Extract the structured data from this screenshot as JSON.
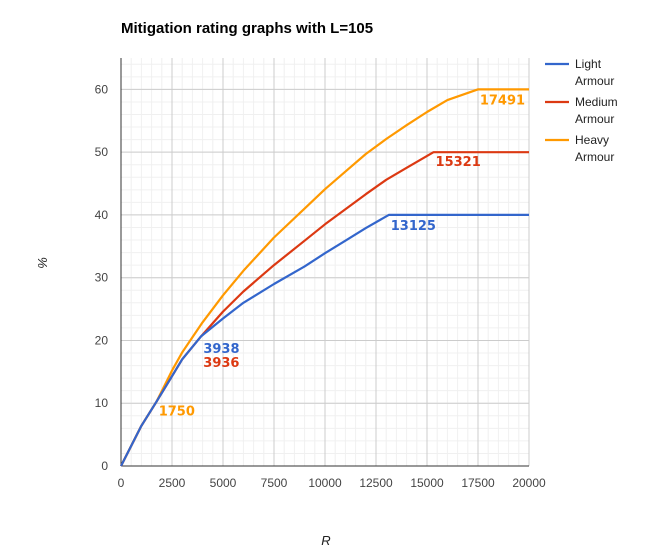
{
  "chart_data": {
    "type": "line",
    "title": "Mitigation rating graphs with L=105",
    "xlabel": "R",
    "ylabel": "%",
    "xlim": [
      0,
      20000
    ],
    "ylim": [
      0,
      65
    ],
    "x_ticks": [
      0,
      2500,
      5000,
      7500,
      10000,
      12500,
      15000,
      17500,
      20000
    ],
    "y_ticks": [
      0,
      10,
      20,
      30,
      40,
      50,
      60
    ],
    "x_tick_labels": [
      "0",
      "2500",
      "5000",
      "7500",
      "10000",
      "12500",
      "15000",
      "17500",
      "20000"
    ],
    "y_tick_labels": [
      "0",
      "10",
      "20",
      "30",
      "40",
      "50",
      "60"
    ],
    "grid": true,
    "legend_position": "right",
    "series": [
      {
        "name": "Light Armour",
        "legend_lines": [
          "Light",
          "Armour"
        ],
        "color": "#3366cc",
        "points": [
          [
            0,
            0
          ],
          [
            1000,
            6.4
          ],
          [
            1750,
            10.3
          ],
          [
            2500,
            14.3
          ],
          [
            3000,
            17.0
          ],
          [
            3938,
            20.7
          ],
          [
            5000,
            23.5
          ],
          [
            6000,
            26.0
          ],
          [
            7500,
            29.0
          ],
          [
            9000,
            31.8
          ],
          [
            10000,
            33.9
          ],
          [
            11000,
            35.9
          ],
          [
            12000,
            37.9
          ],
          [
            13125,
            40.0
          ],
          [
            20000,
            40.0
          ]
        ]
      },
      {
        "name": "Medium Armour",
        "legend_lines": [
          "Medium",
          "Armour"
        ],
        "color": "#dc3912",
        "points": [
          [
            0,
            0
          ],
          [
            1000,
            6.4
          ],
          [
            1750,
            10.3
          ],
          [
            2500,
            14.3
          ],
          [
            3000,
            17.0
          ],
          [
            3936,
            20.7
          ],
          [
            5000,
            24.6
          ],
          [
            6000,
            27.8
          ],
          [
            7500,
            32.0
          ],
          [
            9000,
            35.9
          ],
          [
            10000,
            38.5
          ],
          [
            11000,
            40.9
          ],
          [
            12000,
            43.3
          ],
          [
            13000,
            45.6
          ],
          [
            14000,
            47.5
          ],
          [
            15321,
            50.0
          ],
          [
            20000,
            50.0
          ]
        ]
      },
      {
        "name": "Heavy Armour",
        "legend_lines": [
          "Heavy",
          "Armour"
        ],
        "color": "#ff9900",
        "points": [
          [
            0,
            0
          ],
          [
            1000,
            6.4
          ],
          [
            1750,
            10.3
          ],
          [
            2500,
            15.2
          ],
          [
            3000,
            18.1
          ],
          [
            4000,
            22.9
          ],
          [
            5000,
            27.2
          ],
          [
            6000,
            31.1
          ],
          [
            7500,
            36.4
          ],
          [
            9000,
            41.0
          ],
          [
            10000,
            44.1
          ],
          [
            11000,
            46.9
          ],
          [
            12000,
            49.7
          ],
          [
            13000,
            52.1
          ],
          [
            14000,
            54.3
          ],
          [
            15000,
            56.4
          ],
          [
            16000,
            58.3
          ],
          [
            17491,
            60.0
          ],
          [
            20000,
            60.0
          ]
        ]
      }
    ],
    "annotations": [
      {
        "text": "17491",
        "x": 17491,
        "y": 60,
        "color": "#ff9900",
        "dx": 2,
        "dy": 15
      },
      {
        "text": "15321",
        "x": 15321,
        "y": 50,
        "color": "#dc3912",
        "dx": 2,
        "dy": 14
      },
      {
        "text": "13125",
        "x": 13125,
        "y": 40,
        "color": "#3366cc",
        "dx": 2,
        "dy": 15
      },
      {
        "text": "3938",
        "x": 3938,
        "y": 20.7,
        "color": "#3366cc",
        "dx": 2,
        "dy": 17
      },
      {
        "text": "3936",
        "x": 3936,
        "y": 20.7,
        "color": "#dc3912",
        "dx": 2,
        "dy": 31
      },
      {
        "text": "1750",
        "x": 1750,
        "y": 10.3,
        "color": "#ff9900",
        "dx": 2,
        "dy": 14
      }
    ]
  }
}
